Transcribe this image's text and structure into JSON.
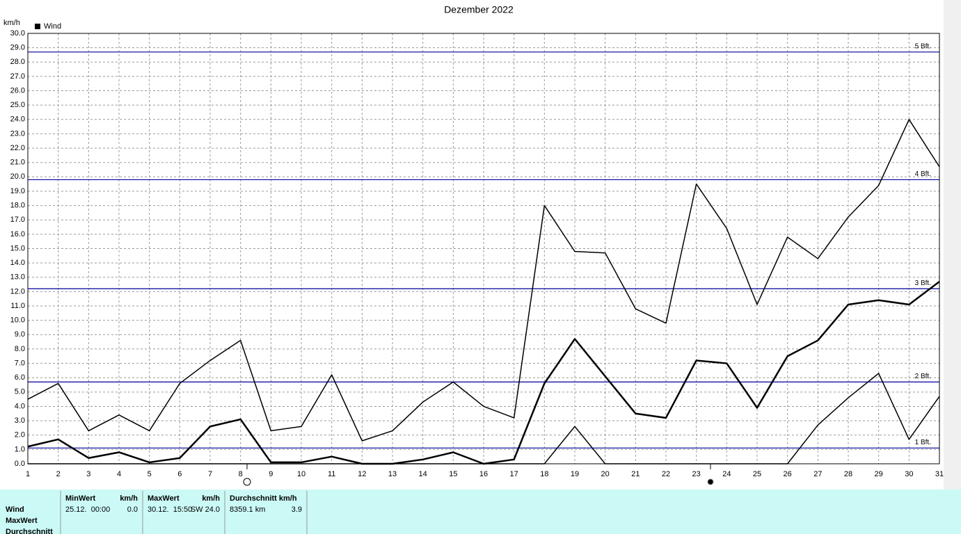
{
  "chart_data": {
    "type": "line",
    "title": "Dezember 2022",
    "y_unit": "km/h",
    "legend": "Wind",
    "legend_color": "#000000",
    "categories": [
      "1",
      "2",
      "3",
      "4",
      "5",
      "6",
      "7",
      "8",
      "9",
      "10",
      "11",
      "12",
      "13",
      "14",
      "15",
      "16",
      "17",
      "18",
      "19",
      "20",
      "21",
      "22",
      "23",
      "24",
      "25",
      "26",
      "27",
      "28",
      "29",
      "30",
      "31"
    ],
    "series": [
      {
        "name": "Wind",
        "color": "#000000",
        "line_width": 2.5,
        "values": [
          1.2,
          1.7,
          0.4,
          0.8,
          0.1,
          0.4,
          2.6,
          3.1,
          0.1,
          0.1,
          0.5,
          0.0,
          0.0,
          0.3,
          0.8,
          0.0,
          0.3,
          5.6,
          8.7,
          6.1,
          3.5,
          3.2,
          7.2,
          7.0,
          3.9,
          7.5,
          8.6,
          11.1,
          11.4,
          11.1,
          12.7
        ]
      },
      {
        "color": "#000000",
        "line_width": 1.5,
        "values": [
          4.5,
          5.6,
          2.3,
          3.4,
          2.3,
          5.6,
          7.2,
          8.6,
          2.3,
          2.6,
          6.2,
          1.6,
          2.3,
          4.3,
          5.7,
          4.0,
          3.2,
          18.0,
          14.8,
          14.7,
          10.8,
          9.8,
          19.5,
          16.4,
          11.1,
          15.8,
          14.3,
          17.2,
          19.4,
          24.0,
          20.7
        ]
      },
      {
        "color": "#000000",
        "line_width": 1.5,
        "values": [
          0,
          0,
          0,
          0,
          0,
          0,
          0,
          0,
          0,
          0,
          0,
          0,
          0,
          0,
          0,
          0,
          0,
          0,
          2.6,
          0,
          0,
          0,
          0,
          0,
          0,
          0,
          2.7,
          4.6,
          6.3,
          1.7,
          4.7
        ]
      }
    ],
    "ylim": [
      0,
      30
    ],
    "yticks": [
      {
        "value": 0,
        "label": "0.0"
      },
      {
        "value": 1,
        "label": "1.0"
      },
      {
        "value": 2,
        "label": "2.0"
      },
      {
        "value": 3,
        "label": "3.0"
      },
      {
        "value": 4,
        "label": "4.0"
      },
      {
        "value": 5,
        "label": "5.0"
      },
      {
        "value": 6,
        "label": "6.0"
      },
      {
        "value": 7,
        "label": "7.0"
      },
      {
        "value": 8,
        "label": "8.0"
      },
      {
        "value": 9,
        "label": "9.0"
      },
      {
        "value": 10,
        "label": "10.0"
      },
      {
        "value": 11,
        "label": "11.0"
      },
      {
        "value": 12,
        "label": "12.0"
      },
      {
        "value": 13,
        "label": "13.0"
      },
      {
        "value": 14,
        "label": "14.0"
      },
      {
        "value": 15,
        "label": "15.0"
      },
      {
        "value": 16,
        "label": "16.0"
      },
      {
        "value": 17,
        "label": "17.0"
      },
      {
        "value": 18,
        "label": "18.0"
      },
      {
        "value": 19,
        "label": "19.0"
      },
      {
        "value": 20,
        "label": "20.0"
      },
      {
        "value": 21,
        "label": "21.0"
      },
      {
        "value": 22,
        "label": "22.0"
      },
      {
        "value": 23,
        "label": "23.0"
      },
      {
        "value": 24,
        "label": "24.0"
      },
      {
        "value": 25,
        "label": "25.0"
      },
      {
        "value": 26,
        "label": "26.0"
      },
      {
        "value": 27,
        "label": "27.0"
      },
      {
        "value": 28,
        "label": "28.0"
      },
      {
        "value": 29,
        "label": "29.0"
      },
      {
        "value": 30,
        "label": "30.0"
      }
    ],
    "grid": true,
    "reference_lines": [
      {
        "value": 1.1,
        "label": "1 Bft."
      },
      {
        "value": 5.7,
        "label": "2 Bft."
      },
      {
        "value": 12.2,
        "label": "3 Bft."
      },
      {
        "value": 19.8,
        "label": "4 Bft."
      },
      {
        "value": 28.7,
        "label": "5 Bft."
      }
    ],
    "reference_color": "#00009c"
  },
  "table": {
    "columns": [
      {
        "title": "MinWert",
        "unit": "km/h"
      },
      {
        "title": "MaxWert",
        "unit": "km/h"
      },
      {
        "title": "Durchschnitt km/h"
      }
    ],
    "rows": [
      "Wind",
      "MaxWert",
      "Durchschnitt"
    ],
    "cells": [
      [
        "25.12.  00:00",
        "0.0"
      ],
      [
        "30.12.  15:50",
        "SW 24.0"
      ],
      [
        "8359.1 km",
        "3.9"
      ]
    ]
  }
}
